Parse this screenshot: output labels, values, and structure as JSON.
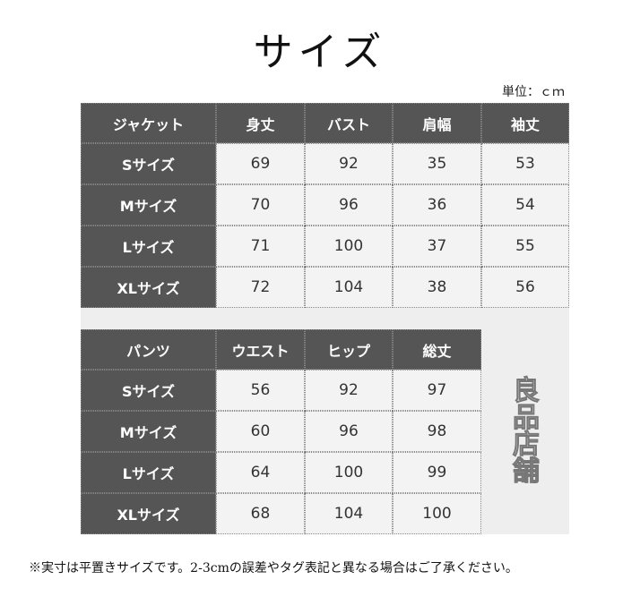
{
  "title": "サイズ",
  "unit_label": "単位：ｃｍ",
  "jacket": {
    "headers": [
      "ジャケット",
      "身丈",
      "バスト",
      "肩幅",
      "袖丈"
    ],
    "rows": [
      {
        "size": "Sサイズ",
        "values": [
          "69",
          "92",
          "35",
          "53"
        ]
      },
      {
        "size": "Mサイズ",
        "values": [
          "70",
          "96",
          "36",
          "54"
        ]
      },
      {
        "size": "Lサイズ",
        "values": [
          "71",
          "100",
          "37",
          "55"
        ]
      },
      {
        "size": "XLサイズ",
        "values": [
          "72",
          "104",
          "38",
          "56"
        ]
      }
    ]
  },
  "pants": {
    "headers": [
      "パンツ",
      "ウエスト",
      "ヒップ",
      "総丈"
    ],
    "rows": [
      {
        "size": "Sサイズ",
        "values": [
          "56",
          "92",
          "97"
        ]
      },
      {
        "size": "Mサイズ",
        "values": [
          "60",
          "96",
          "98"
        ]
      },
      {
        "size": "Lサイズ",
        "values": [
          "64",
          "100",
          "99"
        ]
      },
      {
        "size": "XLサイズ",
        "values": [
          "68",
          "104",
          "100"
        ]
      }
    ]
  },
  "watermark": "良品店舗",
  "note": "※実寸は平置きサイズです。2-3cmの誤差やタグ表記と異なる場合はご了承ください。",
  "colors": {
    "header_bg": "#555555",
    "cell_bg": "#f3f3f3"
  }
}
